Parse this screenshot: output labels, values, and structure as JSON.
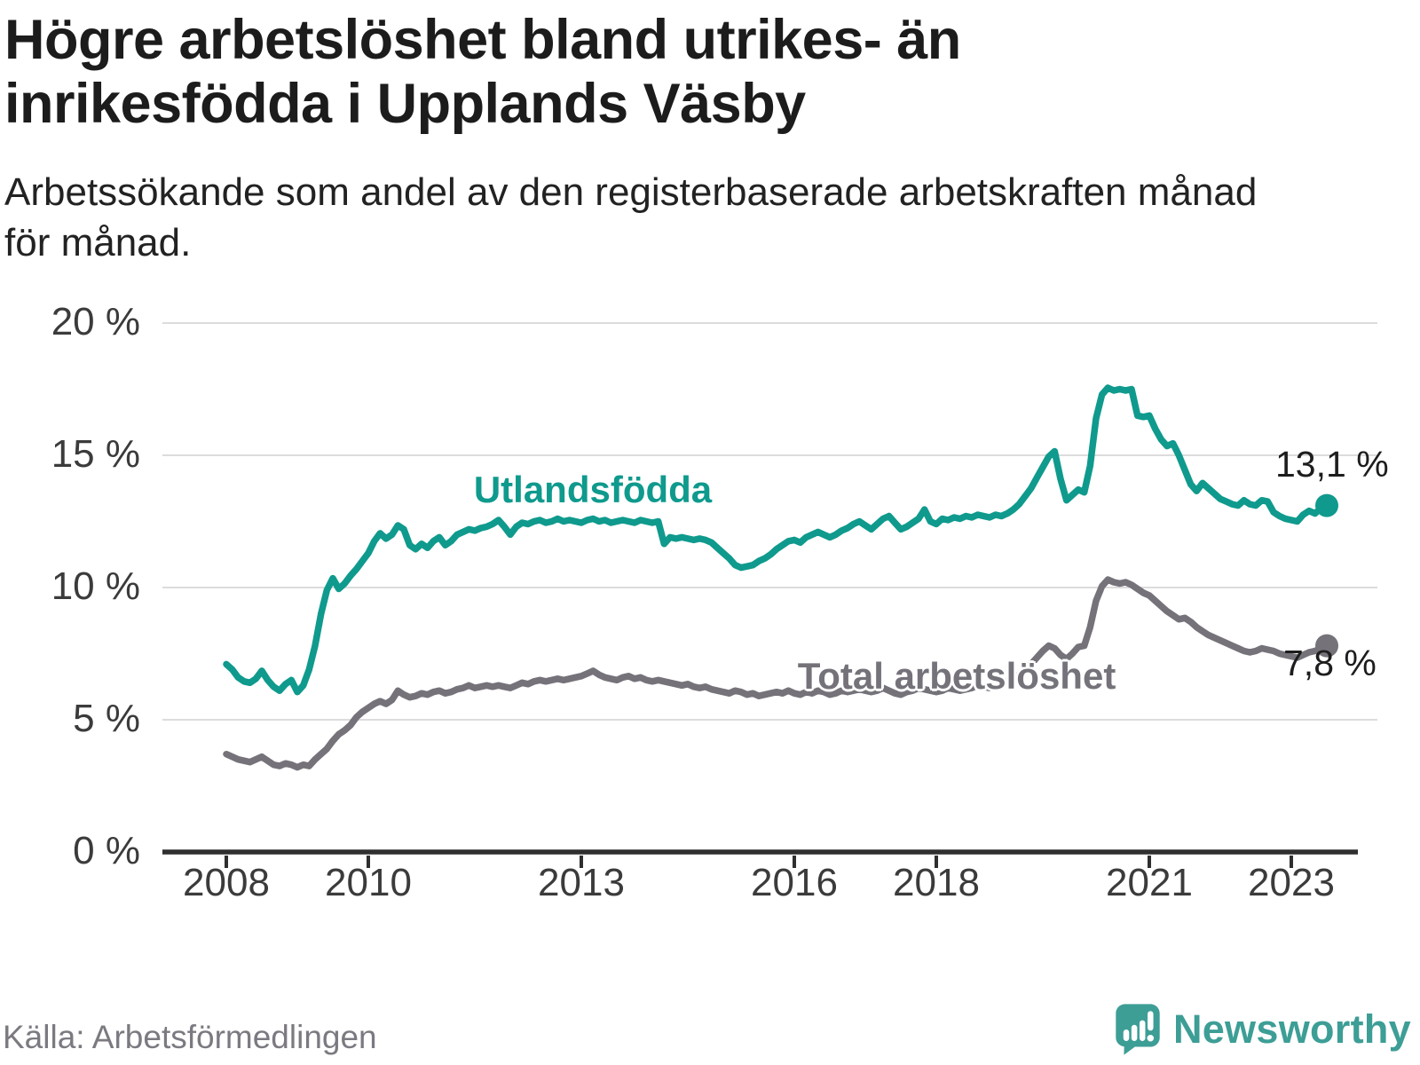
{
  "footer": {
    "source": "Källa: Arbetsförmedlingen",
    "brand": "Newsworthy"
  },
  "colors": {
    "teal_line": "#0f9a8d",
    "gray_line": "#75727a",
    "logo_teal": "#3d9e96",
    "gridline": "#dcdcdc",
    "axis": "#2f2f2f",
    "title_text": "#1c1c1c",
    "tick_text": "#3b3b3b"
  },
  "chart_data": {
    "type": "line",
    "title": "Högre arbetslöshet bland utrikes- än inrikesfödda i Upplands Väsby",
    "title_lines": [
      "Högre arbetslöshet bland utrikes- än",
      "inrikesfödda i Upplands Väsby"
    ],
    "subtitle": "Arbetssökande som andel av den registerbaserade arbetskraften månad för månad.",
    "subtitle_lines": [
      "Arbetssökande som andel av den registerbaserade arbetskraften månad",
      "för månad."
    ],
    "frequency": "monthly",
    "x_start": "2008-01",
    "x_end": "2023-07",
    "ylim": [
      0,
      20
    ],
    "grid": "horizontal",
    "legend": "inline-labels",
    "x_axis": {
      "ticks": [
        2008,
        2010,
        2013,
        2016,
        2018,
        2021,
        2023
      ]
    },
    "y_axis": {
      "ticks": [
        {
          "value": 0,
          "label": "0 %"
        },
        {
          "value": 5,
          "label": "5 %"
        },
        {
          "value": 10,
          "label": "10 %"
        },
        {
          "value": 15,
          "label": "15 %"
        },
        {
          "value": 20,
          "label": "20 %"
        }
      ]
    },
    "series": [
      {
        "id": "utlandsfodda",
        "name": "Utlandsfödda",
        "color": "#0f9a8d",
        "end_value": 13.1,
        "end_label": "13,1 %",
        "values": [
          7.1,
          6.9,
          6.6,
          6.45,
          6.4,
          6.55,
          6.85,
          6.5,
          6.25,
          6.1,
          6.35,
          6.5,
          6.05,
          6.3,
          6.9,
          7.8,
          9.0,
          9.9,
          10.35,
          9.95,
          10.15,
          10.45,
          10.7,
          11.0,
          11.3,
          11.75,
          12.05,
          11.85,
          12.0,
          12.35,
          12.2,
          11.6,
          11.45,
          11.65,
          11.5,
          11.75,
          11.9,
          11.6,
          11.75,
          12.0,
          12.1,
          12.2,
          12.15,
          12.25,
          12.3,
          12.4,
          12.55,
          12.3,
          12.0,
          12.3,
          12.45,
          12.4,
          12.5,
          12.55,
          12.45,
          12.5,
          12.6,
          12.5,
          12.55,
          12.5,
          12.45,
          12.55,
          12.6,
          12.5,
          12.55,
          12.45,
          12.5,
          12.55,
          12.5,
          12.45,
          12.55,
          12.5,
          12.45,
          12.5,
          11.65,
          11.9,
          11.85,
          11.9,
          11.85,
          11.8,
          11.85,
          11.8,
          11.7,
          11.5,
          11.3,
          11.1,
          10.85,
          10.75,
          10.8,
          10.85,
          11.0,
          11.1,
          11.25,
          11.45,
          11.6,
          11.75,
          11.8,
          11.7,
          11.9,
          12.0,
          12.1,
          12.0,
          11.9,
          12.0,
          12.15,
          12.25,
          12.4,
          12.5,
          12.35,
          12.2,
          12.4,
          12.6,
          12.7,
          12.45,
          12.2,
          12.3,
          12.45,
          12.6,
          12.95,
          12.5,
          12.4,
          12.6,
          12.55,
          12.65,
          12.6,
          12.7,
          12.65,
          12.75,
          12.7,
          12.65,
          12.75,
          12.7,
          12.8,
          12.95,
          13.15,
          13.45,
          13.75,
          14.15,
          14.55,
          14.95,
          15.15,
          14.1,
          13.3,
          13.5,
          13.7,
          13.6,
          14.6,
          16.4,
          17.3,
          17.55,
          17.45,
          17.5,
          17.45,
          17.5,
          16.5,
          16.45,
          16.5,
          16.0,
          15.6,
          15.35,
          15.45,
          15.0,
          14.45,
          13.9,
          13.65,
          13.95,
          13.75,
          13.55,
          13.35,
          13.25,
          13.15,
          13.1,
          13.3,
          13.15,
          13.1,
          13.3,
          13.25,
          12.85,
          12.7,
          12.6,
          12.55,
          12.5,
          12.75,
          12.9,
          12.8,
          13.0,
          13.1
        ]
      },
      {
        "id": "total",
        "name": "Total arbetslöshet",
        "color": "#75727a",
        "end_value": 7.8,
        "end_label": "7,8 %",
        "values": [
          3.7,
          3.6,
          3.5,
          3.45,
          3.4,
          3.5,
          3.6,
          3.45,
          3.3,
          3.25,
          3.35,
          3.3,
          3.2,
          3.3,
          3.25,
          3.5,
          3.7,
          3.9,
          4.2,
          4.45,
          4.6,
          4.8,
          5.1,
          5.3,
          5.45,
          5.6,
          5.7,
          5.6,
          5.75,
          6.1,
          5.95,
          5.85,
          5.9,
          6.0,
          5.95,
          6.05,
          6.1,
          6.0,
          6.05,
          6.15,
          6.2,
          6.3,
          6.2,
          6.25,
          6.3,
          6.25,
          6.3,
          6.25,
          6.2,
          6.3,
          6.4,
          6.35,
          6.45,
          6.5,
          6.45,
          6.5,
          6.55,
          6.5,
          6.55,
          6.6,
          6.65,
          6.75,
          6.85,
          6.7,
          6.6,
          6.55,
          6.5,
          6.6,
          6.65,
          6.55,
          6.6,
          6.5,
          6.45,
          6.5,
          6.45,
          6.4,
          6.35,
          6.3,
          6.35,
          6.25,
          6.2,
          6.25,
          6.15,
          6.1,
          6.05,
          6.0,
          6.1,
          6.05,
          5.95,
          6.0,
          5.9,
          5.95,
          6.0,
          6.05,
          6.0,
          6.1,
          6.0,
          5.95,
          6.05,
          6.0,
          6.1,
          6.05,
          5.95,
          6.0,
          6.1,
          6.05,
          6.1,
          6.15,
          6.1,
          6.05,
          6.1,
          6.2,
          6.1,
          6.0,
          5.95,
          6.05,
          6.1,
          6.2,
          6.15,
          6.1,
          6.05,
          6.1,
          6.2,
          6.15,
          6.1,
          6.15,
          6.2,
          6.3,
          6.25,
          6.2,
          6.3,
          6.35,
          6.45,
          6.55,
          6.7,
          6.9,
          7.1,
          7.35,
          7.6,
          7.8,
          7.7,
          7.45,
          7.3,
          7.5,
          7.75,
          7.8,
          8.5,
          9.5,
          10.05,
          10.3,
          10.2,
          10.15,
          10.2,
          10.1,
          9.95,
          9.8,
          9.7,
          9.5,
          9.3,
          9.1,
          8.95,
          8.8,
          8.85,
          8.7,
          8.5,
          8.35,
          8.2,
          8.1,
          8.0,
          7.9,
          7.8,
          7.7,
          7.6,
          7.55,
          7.6,
          7.7,
          7.65,
          7.6,
          7.5,
          7.45,
          7.4,
          7.35,
          7.45,
          7.55,
          7.6,
          7.7,
          7.8
        ]
      }
    ]
  }
}
